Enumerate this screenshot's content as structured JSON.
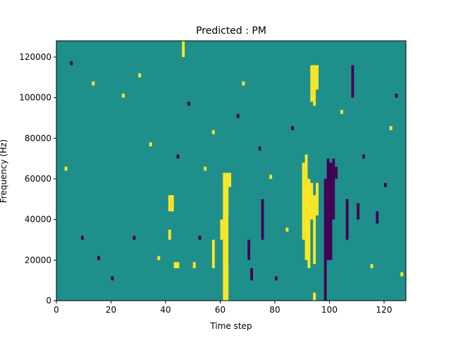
{
  "colors": {
    "background": "#1f8f8c",
    "low": "#440154",
    "high": "#fde725",
    "axis": "#000000"
  },
  "chart_data": {
    "type": "heatmap",
    "title": "Predicted : PM",
    "xlabel": "Time step",
    "ylabel": "Frequency (Hz)",
    "xlim": [
      0,
      128
    ],
    "ylim": [
      0,
      128000
    ],
    "xticks": [
      0,
      20,
      40,
      60,
      80,
      100,
      120
    ],
    "yticks": [
      0,
      20000,
      40000,
      60000,
      80000,
      100000,
      120000
    ],
    "grid": false,
    "legend": "none",
    "n_time_steps": 128,
    "n_freq_bins": 128,
    "bin_hz": 1000,
    "default_value": 0,
    "value_scale": {
      "low": -1,
      "mid": 0,
      "high": 1
    },
    "cells": [
      [
        61,
        0,
        61000,
        1
      ],
      [
        62,
        0,
        62000,
        1
      ],
      [
        62,
        3000,
        17000,
        1
      ],
      [
        61,
        17000,
        30000,
        1
      ],
      [
        62,
        43000,
        56000,
        1
      ],
      [
        61,
        56000,
        63000,
        1
      ],
      [
        62,
        56000,
        63000,
        1
      ],
      [
        63,
        56000,
        63000,
        1
      ],
      [
        90,
        30000,
        68000,
        1
      ],
      [
        91,
        20000,
        72000,
        1
      ],
      [
        92,
        16000,
        60000,
        1
      ],
      [
        93,
        40000,
        58000,
        1
      ],
      [
        94,
        0,
        4000,
        1
      ],
      [
        94,
        18000,
        52000,
        1
      ],
      [
        95,
        42000,
        58000,
        1
      ],
      [
        93,
        98000,
        116000,
        1
      ],
      [
        94,
        96000,
        116000,
        1
      ],
      [
        95,
        104000,
        116000,
        1
      ],
      [
        41,
        44000,
        52000,
        1
      ],
      [
        42,
        44000,
        52000,
        1
      ],
      [
        43,
        16000,
        19000,
        1
      ],
      [
        44,
        16000,
        19000,
        1
      ],
      [
        41,
        30000,
        35000,
        1
      ],
      [
        50,
        16000,
        19000,
        1
      ],
      [
        46,
        120000,
        128000,
        1
      ],
      [
        57,
        16000,
        30000,
        1
      ],
      [
        60,
        30000,
        40000,
        1
      ],
      [
        98,
        0,
        60000,
        -1
      ],
      [
        99,
        20000,
        70000,
        -1
      ],
      [
        100,
        20000,
        68000,
        -1
      ],
      [
        101,
        40000,
        70000,
        -1
      ],
      [
        102,
        60000,
        66000,
        -1
      ],
      [
        70,
        20000,
        30000,
        -1
      ],
      [
        71,
        10000,
        16000,
        -1
      ],
      [
        75,
        30000,
        50000,
        -1
      ],
      [
        106,
        30000,
        50000,
        -1
      ],
      [
        117,
        38000,
        44000,
        -1
      ],
      [
        108,
        100000,
        116000,
        -1
      ],
      [
        110,
        40000,
        48000,
        -1
      ],
      [
        5,
        116000,
        118000,
        -1
      ],
      [
        13,
        106000,
        108000,
        1
      ],
      [
        15,
        20000,
        22000,
        -1
      ],
      [
        20,
        10000,
        12000,
        -1
      ],
      [
        24,
        100000,
        102000,
        1
      ],
      [
        28,
        30000,
        32000,
        -1
      ],
      [
        34,
        76000,
        78000,
        1
      ],
      [
        37,
        20000,
        22000,
        1
      ],
      [
        48,
        96000,
        98000,
        -1
      ],
      [
        52,
        30000,
        32000,
        -1
      ],
      [
        54,
        64000,
        66000,
        1
      ],
      [
        57,
        82000,
        84000,
        1
      ],
      [
        66,
        90000,
        92000,
        -1
      ],
      [
        68,
        106000,
        108000,
        1
      ],
      [
        74,
        74000,
        76000,
        -1
      ],
      [
        78,
        60000,
        62000,
        1
      ],
      [
        80,
        10000,
        12000,
        -1
      ],
      [
        84,
        34000,
        36000,
        1
      ],
      [
        86,
        84000,
        86000,
        -1
      ],
      [
        104,
        92000,
        94000,
        1
      ],
      [
        112,
        70000,
        72000,
        -1
      ],
      [
        115,
        16000,
        18000,
        1
      ],
      [
        120,
        56000,
        58000,
        -1
      ],
      [
        122,
        84000,
        86000,
        1
      ],
      [
        124,
        100000,
        102000,
        -1
      ],
      [
        126,
        12000,
        14000,
        1
      ],
      [
        3,
        64000,
        66000,
        1
      ],
      [
        9,
        30000,
        32000,
        -1
      ],
      [
        30,
        110000,
        112000,
        1
      ],
      [
        44,
        70000,
        72000,
        -1
      ]
    ]
  }
}
